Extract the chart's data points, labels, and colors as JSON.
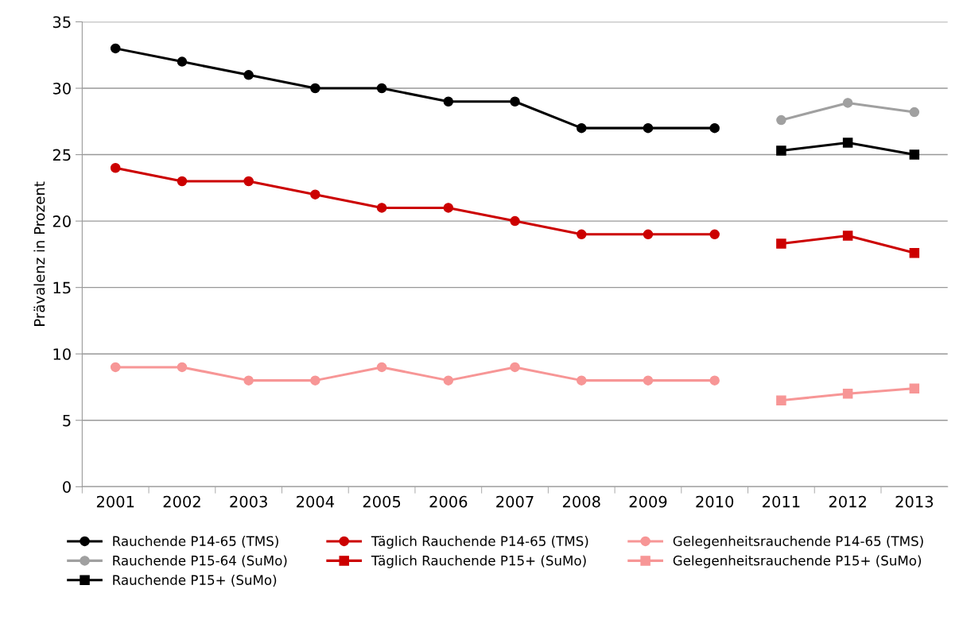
{
  "chart_data": {
    "type": "line",
    "ylabel": "Prävalenz in Prozent",
    "categories": [
      "2001",
      "2002",
      "2003",
      "2004",
      "2005",
      "2006",
      "2007",
      "2008",
      "2009",
      "2010",
      "2011",
      "2012",
      "2013"
    ],
    "ylim": [
      0,
      35
    ],
    "yticks": [
      0,
      5,
      10,
      15,
      20,
      25,
      30,
      35
    ],
    "grid": "y",
    "legend": "bottom",
    "series": [
      {
        "name": "Rauchende P14-65 (TMS)",
        "color": "#000000",
        "marker": "circle",
        "values": [
          33,
          32,
          31,
          30,
          30,
          29,
          29,
          27,
          27,
          27,
          null,
          null,
          null
        ]
      },
      {
        "name": "Rauchende P15-64 (SuMo)",
        "color": "#a0a0a0",
        "marker": "circle",
        "values": [
          null,
          null,
          null,
          null,
          null,
          null,
          null,
          null,
          null,
          null,
          27.6,
          28.9,
          28.2
        ]
      },
      {
        "name": "Rauchende P15+ (SuMo)",
        "color": "#000000",
        "marker": "square",
        "values": [
          null,
          null,
          null,
          null,
          null,
          null,
          null,
          null,
          null,
          null,
          25.3,
          25.9,
          25.0
        ]
      },
      {
        "name": "Täglich Rauchende P14-65 (TMS)",
        "color": "#cc0000",
        "marker": "circle",
        "values": [
          24,
          23,
          23,
          22,
          21,
          21,
          20,
          19,
          19,
          19,
          null,
          null,
          null
        ]
      },
      {
        "name": "Täglich Rauchende P15+ (SuMo)",
        "color": "#cc0000",
        "marker": "square",
        "values": [
          null,
          null,
          null,
          null,
          null,
          null,
          null,
          null,
          null,
          null,
          18.3,
          18.9,
          17.6
        ]
      },
      {
        "name": "Gelegenheitsrauchende P14-65 (TMS)",
        "color": "#f79696",
        "marker": "circle",
        "values": [
          9,
          9,
          8,
          8,
          9,
          8,
          9,
          8,
          8,
          8,
          null,
          null,
          null
        ]
      },
      {
        "name": "Gelegenheitsrauchende P15+ (SuMo)",
        "color": "#f79696",
        "marker": "square",
        "values": [
          null,
          null,
          null,
          null,
          null,
          null,
          null,
          null,
          null,
          null,
          6.5,
          7.0,
          7.4
        ]
      }
    ]
  }
}
